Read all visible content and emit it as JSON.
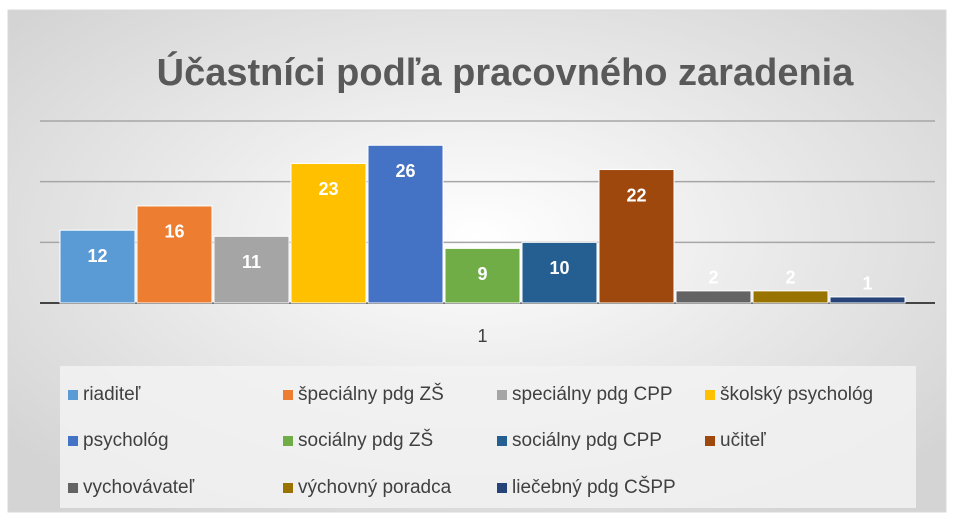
{
  "chart_data": {
    "type": "bar",
    "title": "Účastníci podľa pracovného zaradenia",
    "categories": [
      "1"
    ],
    "series": [
      {
        "name": "riaditeľ",
        "color": "#5b9bd5",
        "values": [
          12
        ]
      },
      {
        "name": "špeciálny pdg ZŠ",
        "color": "#ed7d31",
        "values": [
          16
        ]
      },
      {
        "name": "speciálny pdg CPP",
        "color": "#a5a5a5",
        "values": [
          11
        ]
      },
      {
        "name": "školský psychológ",
        "color": "#ffc000",
        "values": [
          23
        ]
      },
      {
        "name": "psychológ",
        "color": "#4472c4",
        "values": [
          26
        ]
      },
      {
        "name": "sociálny pdg ZŠ",
        "color": "#70ad47",
        "values": [
          9
        ]
      },
      {
        "name": "sociálny pdg CPP",
        "color": "#255e91",
        "values": [
          10
        ]
      },
      {
        "name": "učiteľ",
        "color": "#9e480e",
        "values": [
          22
        ]
      },
      {
        "name": "vychovávateľ",
        "color": "#636363",
        "values": [
          2
        ]
      },
      {
        "name": "výchovný poradca",
        "color": "#997300",
        "values": [
          2
        ]
      },
      {
        "name": "liečebný pdg CŠPP",
        "color": "#264478",
        "values": [
          1
        ]
      }
    ],
    "ylim": [
      0,
      30
    ],
    "yticks": [
      0,
      10,
      20,
      30
    ],
    "grid": true,
    "legend": "bottom"
  }
}
